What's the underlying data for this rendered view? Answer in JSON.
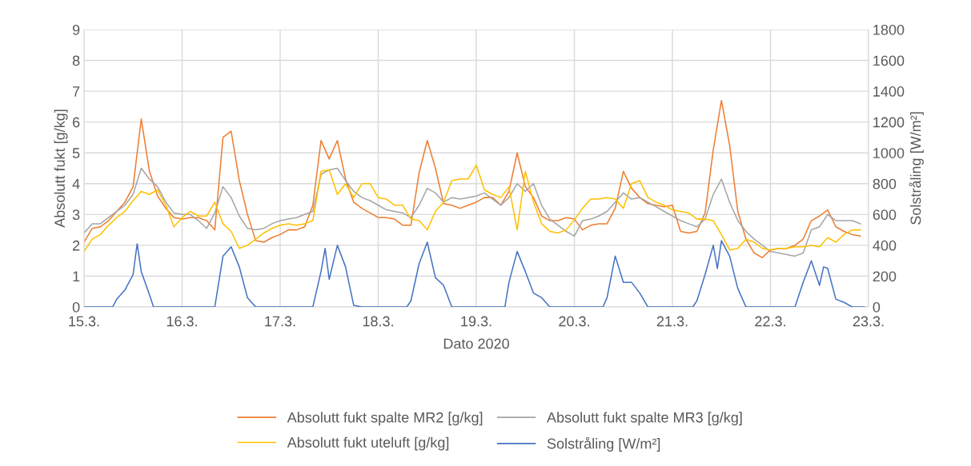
{
  "chart_data": {
    "type": "line",
    "xlabel": "Dato 2020",
    "ylabel": "Absolutt fukt [g/kg]",
    "y2label": "Solstråling [W/m²]",
    "x": [
      "2020-03-15T00:00",
      "2020-03-15T02:00",
      "2020-03-15T04:00",
      "2020-03-15T06:00",
      "2020-03-15T08:00",
      "2020-03-15T10:00",
      "2020-03-15T12:00",
      "2020-03-15T14:00",
      "2020-03-15T16:00",
      "2020-03-15T18:00",
      "2020-03-15T20:00",
      "2020-03-15T22:00",
      "2020-03-16T00:00",
      "2020-03-16T02:00",
      "2020-03-16T04:00",
      "2020-03-16T06:00",
      "2020-03-16T08:00",
      "2020-03-16T10:00",
      "2020-03-16T12:00",
      "2020-03-16T14:00",
      "2020-03-16T16:00",
      "2020-03-16T18:00",
      "2020-03-16T20:00",
      "2020-03-16T22:00",
      "2020-03-17T00:00",
      "2020-03-17T02:00",
      "2020-03-17T04:00",
      "2020-03-17T06:00",
      "2020-03-17T08:00",
      "2020-03-17T10:00",
      "2020-03-17T12:00",
      "2020-03-17T14:00",
      "2020-03-17T16:00",
      "2020-03-17T18:00",
      "2020-03-17T20:00",
      "2020-03-17T22:00",
      "2020-03-18T00:00",
      "2020-03-18T02:00",
      "2020-03-18T04:00",
      "2020-03-18T06:00",
      "2020-03-18T08:00",
      "2020-03-18T10:00",
      "2020-03-18T12:00",
      "2020-03-18T14:00",
      "2020-03-18T16:00",
      "2020-03-18T18:00",
      "2020-03-18T20:00",
      "2020-03-18T22:00",
      "2020-03-19T00:00",
      "2020-03-19T02:00",
      "2020-03-19T04:00",
      "2020-03-19T06:00",
      "2020-03-19T08:00",
      "2020-03-19T10:00",
      "2020-03-19T12:00",
      "2020-03-19T14:00",
      "2020-03-19T16:00",
      "2020-03-19T18:00",
      "2020-03-19T20:00",
      "2020-03-19T22:00",
      "2020-03-20T00:00",
      "2020-03-20T02:00",
      "2020-03-20T04:00",
      "2020-03-20T06:00",
      "2020-03-20T08:00",
      "2020-03-20T10:00",
      "2020-03-20T12:00",
      "2020-03-20T14:00",
      "2020-03-20T16:00",
      "2020-03-20T18:00",
      "2020-03-20T20:00",
      "2020-03-20T22:00",
      "2020-03-21T00:00",
      "2020-03-21T02:00",
      "2020-03-21T04:00",
      "2020-03-21T06:00",
      "2020-03-21T08:00",
      "2020-03-21T10:00",
      "2020-03-21T12:00",
      "2020-03-21T14:00",
      "2020-03-21T16:00",
      "2020-03-21T18:00",
      "2020-03-21T20:00",
      "2020-03-21T22:00",
      "2020-03-22T00:00",
      "2020-03-22T02:00",
      "2020-03-22T04:00",
      "2020-03-22T06:00",
      "2020-03-22T08:00",
      "2020-03-22T10:00",
      "2020-03-22T12:00",
      "2020-03-22T14:00",
      "2020-03-22T16:00",
      "2020-03-22T18:00",
      "2020-03-22T20:00",
      "2020-03-22T22:00"
    ],
    "series": [
      {
        "name": "Absolutt fukt spalte MR2 [g/kg]",
        "color": "#ed7d31",
        "values": [
          2.1,
          2.55,
          2.6,
          2.8,
          3.1,
          3.4,
          3.9,
          6.1,
          4.4,
          3.6,
          3.2,
          2.9,
          2.85,
          2.9,
          2.9,
          2.8,
          2.5,
          5.5,
          5.7,
          4.1,
          3.0,
          2.15,
          2.1,
          2.25,
          2.35,
          2.5,
          2.5,
          2.6,
          3.3,
          5.4,
          4.8,
          5.4,
          4.15,
          3.4,
          3.2,
          3.05,
          2.9,
          2.9,
          2.85,
          2.65,
          2.65,
          4.35,
          5.4,
          4.5,
          3.35,
          3.3,
          3.2,
          3.3,
          3.4,
          3.55,
          3.55,
          3.3,
          3.75,
          5.0,
          3.9,
          3.55,
          2.95,
          2.8,
          2.8,
          2.9,
          2.85,
          2.5,
          2.65,
          2.7,
          2.7,
          3.2,
          4.4,
          3.85,
          3.55,
          3.35,
          3.3,
          3.25,
          3.3,
          2.45,
          2.4,
          2.45,
          3.05,
          5.1,
          6.7,
          5.25,
          3.1,
          2.2,
          1.75,
          1.6,
          1.85,
          1.9,
          1.9,
          2.0,
          2.2,
          2.8,
          2.95,
          3.15,
          2.6,
          2.45,
          2.35,
          2.3
        ]
      },
      {
        "name": "Absolutt fukt spalte MR3 [g/kg]",
        "color": "#a5a5a5",
        "values": [
          2.4,
          2.7,
          2.7,
          2.9,
          3.1,
          3.3,
          3.65,
          4.5,
          4.15,
          3.9,
          3.4,
          3.05,
          3.0,
          3.0,
          2.8,
          2.55,
          3.05,
          3.9,
          3.55,
          2.95,
          2.55,
          2.5,
          2.55,
          2.7,
          2.8,
          2.85,
          2.9,
          3.0,
          3.1,
          4.3,
          4.45,
          4.5,
          4.1,
          3.75,
          3.55,
          3.45,
          3.3,
          3.15,
          3.1,
          3.05,
          2.9,
          3.3,
          3.85,
          3.7,
          3.4,
          3.55,
          3.5,
          3.55,
          3.6,
          3.7,
          3.5,
          3.3,
          3.55,
          4.0,
          3.75,
          4.0,
          3.3,
          2.85,
          2.65,
          2.45,
          2.3,
          2.8,
          2.85,
          2.95,
          3.1,
          3.4,
          3.7,
          3.5,
          3.55,
          3.4,
          3.25,
          3.1,
          2.95,
          2.8,
          2.7,
          2.6,
          2.85,
          3.65,
          4.15,
          3.4,
          2.8,
          2.45,
          2.2,
          2.0,
          1.8,
          1.75,
          1.7,
          1.65,
          1.75,
          2.5,
          2.6,
          3.0,
          2.8,
          2.8,
          2.8,
          2.7
        ]
      },
      {
        "name": "Absolutt fukt uteluft [g/kg]",
        "color": "#ffc000",
        "values": [
          1.8,
          2.2,
          2.35,
          2.65,
          2.9,
          3.1,
          3.45,
          3.75,
          3.65,
          3.8,
          3.3,
          2.6,
          2.9,
          3.1,
          2.95,
          2.95,
          3.4,
          2.7,
          2.45,
          1.9,
          2.0,
          2.2,
          2.4,
          2.55,
          2.65,
          2.7,
          2.65,
          2.7,
          2.8,
          4.4,
          4.45,
          3.65,
          4.0,
          3.55,
          4.0,
          4.0,
          3.55,
          3.5,
          3.3,
          3.3,
          2.85,
          2.8,
          2.5,
          3.1,
          3.4,
          4.1,
          4.15,
          4.15,
          4.6,
          3.8,
          3.65,
          3.55,
          3.9,
          2.5,
          4.4,
          3.4,
          2.7,
          2.45,
          2.4,
          2.5,
          2.83,
          3.2,
          3.5,
          3.5,
          3.55,
          3.5,
          3.2,
          4.0,
          4.1,
          3.55,
          3.4,
          3.3,
          3.15,
          3.1,
          3.05,
          2.85,
          2.85,
          2.8,
          2.35,
          1.85,
          1.9,
          2.2,
          2.1,
          1.9,
          1.85,
          1.9,
          1.9,
          1.95,
          1.95,
          2.0,
          1.95,
          2.25,
          2.1,
          2.35,
          2.5,
          2.5
        ]
      },
      {
        "name": "Solstråling [W/m²]",
        "color": "#4472c4",
        "axis": "y2",
        "x": [
          "2020-03-15T00:00",
          "2020-03-15T07:00",
          "2020-03-15T08:00",
          "2020-03-15T10:00",
          "2020-03-15T12:00",
          "2020-03-15T13:00",
          "2020-03-15T14:00",
          "2020-03-15T16:00",
          "2020-03-15T17:00",
          "2020-03-16T08:00",
          "2020-03-16T10:00",
          "2020-03-16T12:00",
          "2020-03-16T14:00",
          "2020-03-16T16:00",
          "2020-03-16T18:00",
          "2020-03-17T08:00",
          "2020-03-17T10:00",
          "2020-03-17T11:00",
          "2020-03-17T12:00",
          "2020-03-17T14:00",
          "2020-03-17T16:00",
          "2020-03-17T18:00",
          "2020-03-17T20:00",
          "2020-03-18T07:00",
          "2020-03-18T08:00",
          "2020-03-18T10:00",
          "2020-03-18T12:00",
          "2020-03-18T14:00",
          "2020-03-18T16:00",
          "2020-03-18T18:00",
          "2020-03-19T07:00",
          "2020-03-19T08:00",
          "2020-03-19T10:00",
          "2020-03-19T12:00",
          "2020-03-19T14:00",
          "2020-03-19T16:00",
          "2020-03-19T18:00",
          "2020-03-20T07:00",
          "2020-03-20T08:00",
          "2020-03-20T10:00",
          "2020-03-20T12:00",
          "2020-03-20T14:00",
          "2020-03-20T16:00",
          "2020-03-20T18:00",
          "2020-03-21T05:00",
          "2020-03-21T06:00",
          "2020-03-21T08:00",
          "2020-03-21T10:00",
          "2020-03-21T11:00",
          "2020-03-21T12:00",
          "2020-03-21T14:00",
          "2020-03-21T16:00",
          "2020-03-21T18:00",
          "2020-03-22T06:00",
          "2020-03-22T08:00",
          "2020-03-22T10:00",
          "2020-03-22T12:00",
          "2020-03-22T13:00",
          "2020-03-22T14:00",
          "2020-03-22T16:00",
          "2020-03-22T18:00",
          "2020-03-22T20:00",
          "2020-03-22T23:00"
        ],
        "values": [
          0,
          0,
          50,
          110,
          210,
          410,
          230,
          80,
          0,
          0,
          330,
          390,
          260,
          60,
          0,
          0,
          230,
          380,
          180,
          400,
          260,
          10,
          0,
          0,
          40,
          280,
          420,
          190,
          140,
          0,
          0,
          160,
          360,
          230,
          90,
          60,
          0,
          0,
          60,
          330,
          160,
          160,
          90,
          0,
          0,
          40,
          210,
          400,
          250,
          430,
          330,
          120,
          0,
          0,
          160,
          300,
          140,
          260,
          250,
          50,
          30,
          0,
          0
        ]
      }
    ],
    "xlim": [
      "2020-03-15",
      "2020-03-23"
    ],
    "xticks": [
      {
        "value": "2020-03-15",
        "label": "15.3."
      },
      {
        "value": "2020-03-16",
        "label": "16.3."
      },
      {
        "value": "2020-03-17",
        "label": "17.3."
      },
      {
        "value": "2020-03-18",
        "label": "18.3."
      },
      {
        "value": "2020-03-19",
        "label": "19.3."
      },
      {
        "value": "2020-03-20",
        "label": "20.3."
      },
      {
        "value": "2020-03-21",
        "label": "21.3."
      },
      {
        "value": "2020-03-22",
        "label": "22.3."
      },
      {
        "value": "2020-03-23",
        "label": "23.3."
      }
    ],
    "ylim": [
      0,
      9
    ],
    "yticks": [
      0,
      1,
      2,
      3,
      4,
      5,
      6,
      7,
      8,
      9
    ],
    "y2lim": [
      0,
      1800
    ],
    "y2ticks": [
      0,
      200,
      400,
      600,
      800,
      1000,
      1200,
      1400,
      1600,
      1800
    ],
    "grid": true,
    "legend": "bottom",
    "marker": "none",
    "line_style": "solid"
  }
}
